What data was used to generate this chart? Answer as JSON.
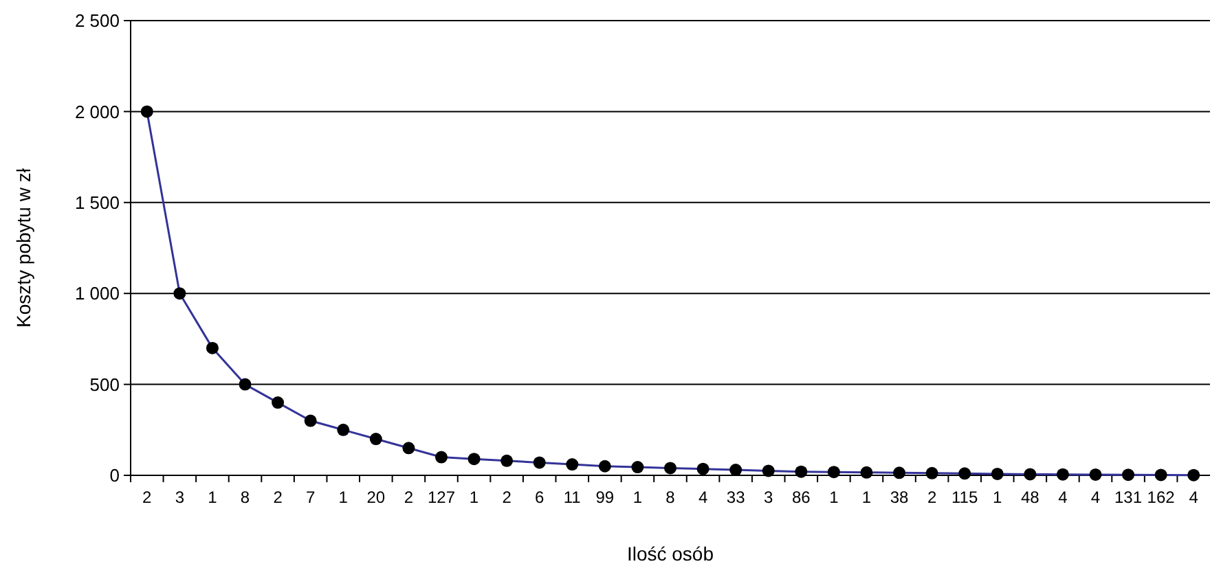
{
  "chart_data": {
    "type": "line",
    "xlabel": "Ilość osób",
    "ylabel": "Koszty pobytu w zł",
    "categories": [
      "2",
      "3",
      "1",
      "8",
      "2",
      "7",
      "1",
      "20",
      "2",
      "127",
      "1",
      "2",
      "6",
      "11",
      "99",
      "1",
      "8",
      "4",
      "33",
      "3",
      "86",
      "1",
      "1",
      "38",
      "2",
      "115",
      "1",
      "48",
      "4",
      "4",
      "131",
      "162",
      "4"
    ],
    "series": [
      {
        "color": "#333399",
        "values": [
          2000,
          1000,
          700,
          500,
          400,
          300,
          250,
          200,
          150,
          100,
          90,
          80,
          70,
          60,
          50,
          45,
          40,
          35,
          30,
          25,
          20,
          18,
          16,
          14,
          12,
          10,
          8,
          6,
          5,
          4,
          3,
          2,
          1
        ]
      }
    ],
    "ylim": [
      0,
      2500
    ],
    "yticks": [
      0,
      {
        "value": 500,
        "label": "500"
      },
      {
        "value": 1000,
        "label": "1 000"
      },
      {
        "value": 1500,
        "label": "1 500"
      },
      {
        "value": 2000,
        "label": "2 000"
      },
      {
        "value": 2500,
        "label": "2 500"
      }
    ],
    "grid": "y",
    "marker": "circle"
  }
}
